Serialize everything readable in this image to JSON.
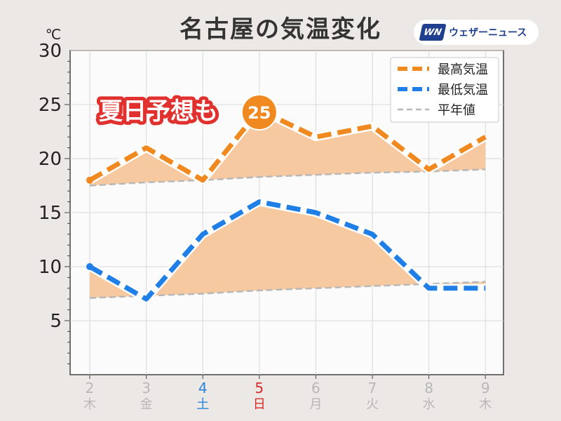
{
  "header": {
    "title": "名古屋の気温変化",
    "logo_mark": "WN",
    "logo_text": "ウェザーニュース"
  },
  "badge": {
    "text": "夏日予想も"
  },
  "peak_marker": {
    "text": "25"
  },
  "colors": {
    "high": "#f0891f",
    "low": "#1f7fe6",
    "normal": "#b8b8b8",
    "fill": "#f7c9a0",
    "badge": "#e0312e",
    "saturday": "#2a83d9",
    "sunday": "#d92b2b"
  },
  "chart_data": {
    "type": "line",
    "ylabel": "℃",
    "ylim": [
      0,
      30
    ],
    "yticks": [
      5,
      10,
      15,
      20,
      25,
      30
    ],
    "categories": [
      "2",
      "3",
      "4",
      "5",
      "6",
      "7",
      "8",
      "9"
    ],
    "weekdays": [
      "木",
      "金",
      "土",
      "日",
      "月",
      "火",
      "水",
      "木"
    ],
    "weekday_color": [
      "normal",
      "normal",
      "saturday",
      "sunday",
      "normal",
      "normal",
      "normal",
      "normal"
    ],
    "grid": true,
    "legend_position": "top-right",
    "series": [
      {
        "name": "最高気温",
        "key": "high",
        "values": [
          18,
          21,
          18,
          24.5,
          22,
          23,
          19,
          22
        ]
      },
      {
        "name": "最低気温",
        "key": "low",
        "values": [
          10,
          7,
          13,
          16,
          15,
          13,
          8,
          8
        ]
      },
      {
        "name": "平年値",
        "key": "normal_high",
        "values": [
          17.5,
          17.8,
          18.0,
          18.3,
          18.5,
          18.7,
          18.8,
          19.0
        ]
      },
      {
        "name": "",
        "key": "normal_low",
        "values": [
          7.1,
          7.3,
          7.5,
          7.8,
          8.0,
          8.2,
          8.4,
          8.6
        ]
      }
    ],
    "legend": [
      "最高気温",
      "最低気温",
      "平年値"
    ]
  }
}
